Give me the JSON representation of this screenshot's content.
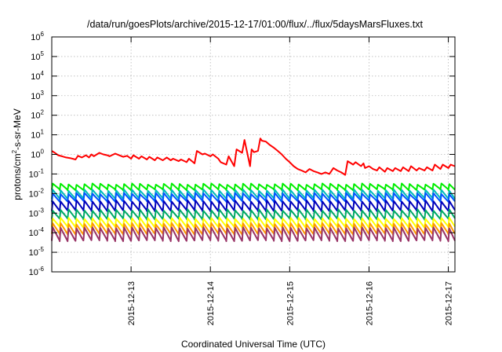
{
  "chart_data": {
    "type": "line",
    "title": "/data/run/goesPlots/archive/2015-12-17/01:00/flux/../flux/5daysMarsFluxes.txt",
    "xlabel": "Coordinated Universal Time (UTC)",
    "ylabel": {
      "prefix": "protons/cm",
      "sup": "2",
      "suffix": "-s-sr-MeV"
    },
    "y_scale": "log",
    "ylim": [
      1e-06,
      1000000.0
    ],
    "y_ticks": [
      {
        "exp": "-6"
      },
      {
        "exp": "-5"
      },
      {
        "exp": "-4"
      },
      {
        "exp": "-3"
      },
      {
        "exp": "-2"
      },
      {
        "exp": "-1"
      },
      {
        "exp": "0"
      },
      {
        "exp": "1"
      },
      {
        "exp": "2"
      },
      {
        "exp": "3"
      },
      {
        "exp": "4"
      },
      {
        "exp": "5"
      },
      {
        "exp": "6"
      }
    ],
    "xlim": [
      "2015-12-12 00:00",
      "2015-12-17 02:00"
    ],
    "x_ticks": [
      "2015-12-13",
      "2015-12-14",
      "2015-12-15",
      "2015-12-16",
      "2015-12-17"
    ],
    "grid": true,
    "series": [
      {
        "color": "#ff0000",
        "width": 2,
        "x": [
          0.0,
          0.04,
          0.08,
          0.13,
          0.18,
          0.23,
          0.3,
          0.33,
          0.38,
          0.43,
          0.47,
          0.5,
          0.53,
          0.6,
          0.65,
          0.7,
          0.73,
          0.8,
          0.85,
          0.9,
          0.95,
          1.0,
          1.03,
          1.1,
          1.13,
          1.2,
          1.23,
          1.3,
          1.33,
          1.4,
          1.45,
          1.5,
          1.53,
          1.6,
          1.63,
          1.7,
          1.73,
          1.8,
          1.83,
          1.9,
          1.93,
          2.0,
          2.03,
          2.1,
          2.13,
          2.2,
          2.23,
          2.3,
          2.33,
          2.4,
          2.43,
          2.5,
          2.52,
          2.55,
          2.6,
          2.63,
          2.65,
          2.7,
          2.75,
          2.8,
          2.85,
          2.9,
          2.95,
          3.0,
          3.05,
          3.1,
          3.15,
          3.2,
          3.25,
          3.3,
          3.35,
          3.4,
          3.45,
          3.5,
          3.55,
          3.6,
          3.65,
          3.7,
          3.73,
          3.8,
          3.83,
          3.9,
          3.93,
          3.95,
          4.0,
          4.05,
          4.1,
          4.13,
          4.2,
          4.23,
          4.3,
          4.33,
          4.4,
          4.43,
          4.5,
          4.53,
          4.6,
          4.63,
          4.7,
          4.73,
          4.8,
          4.83,
          4.9,
          4.93,
          5.0,
          5.03,
          5.08
        ],
        "y": [
          1.5,
          1.2,
          0.9,
          0.8,
          0.7,
          0.65,
          0.55,
          0.85,
          0.7,
          0.9,
          0.7,
          1.0,
          0.8,
          1.2,
          1.0,
          0.9,
          0.8,
          1.1,
          0.9,
          0.75,
          0.85,
          0.6,
          0.9,
          0.6,
          0.8,
          0.55,
          0.75,
          0.5,
          0.7,
          0.5,
          0.7,
          0.5,
          0.6,
          0.45,
          0.55,
          0.4,
          0.6,
          0.35,
          1.5,
          1.0,
          1.1,
          0.8,
          1.0,
          0.6,
          0.4,
          0.3,
          0.8,
          0.25,
          1.8,
          1.2,
          5.5,
          0.25,
          1.8,
          1.3,
          1.5,
          6.5,
          5.0,
          4.5,
          3.0,
          2.2,
          1.5,
          1.0,
          0.6,
          0.4,
          0.25,
          0.18,
          0.15,
          0.12,
          0.18,
          0.14,
          0.12,
          0.1,
          0.12,
          0.1,
          0.2,
          0.15,
          0.12,
          0.09,
          0.45,
          0.3,
          0.4,
          0.25,
          0.35,
          0.2,
          0.25,
          0.18,
          0.15,
          0.22,
          0.13,
          0.2,
          0.14,
          0.2,
          0.14,
          0.22,
          0.14,
          0.25,
          0.15,
          0.2,
          0.15,
          0.22,
          0.15,
          0.3,
          0.18,
          0.3,
          0.2,
          0.3,
          0.25
        ]
      },
      {
        "color": "#00ee00",
        "width": 2,
        "base": 0.021,
        "amp": 0.45
      },
      {
        "color": "#00bbbb",
        "width": 2,
        "base": 0.009,
        "amp": 0.65
      },
      {
        "color": "#0055ff",
        "width": 2,
        "base": 0.0062,
        "amp": 0.6
      },
      {
        "color": "#0000bb",
        "width": 2,
        "base": 0.0024,
        "amp": 0.75
      },
      {
        "color": "#00aa66",
        "width": 2,
        "base": 0.00085,
        "amp": 0.7
      },
      {
        "color": "#ffff00",
        "width": 2,
        "base": 0.00032,
        "amp": 0.7
      },
      {
        "color": "#ff9900",
        "width": 2,
        "base": 0.00016,
        "amp": 0.8
      },
      {
        "color": "#993366",
        "width": 2,
        "base": 9e-05,
        "amp": 0.95
      }
    ],
    "sawtooth_period_days": 0.1
  }
}
